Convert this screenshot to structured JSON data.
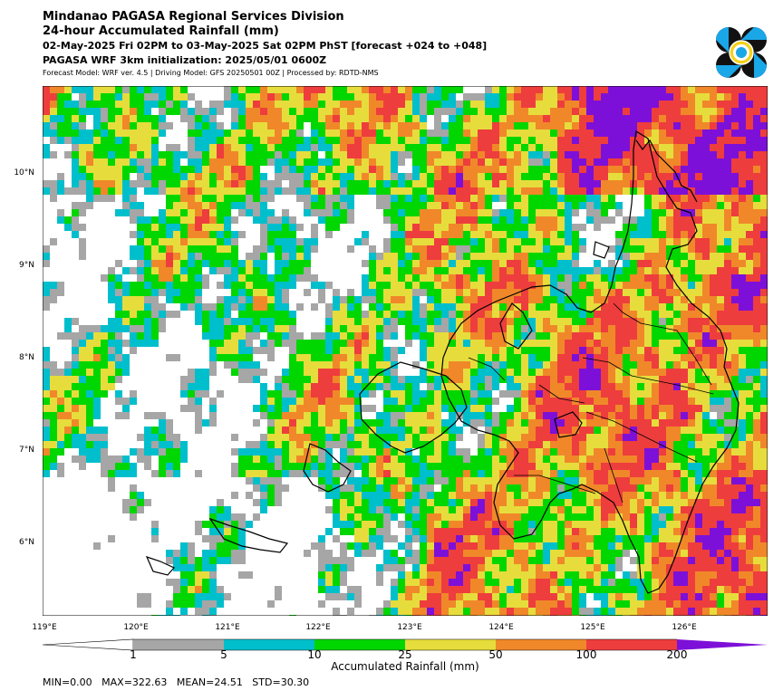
{
  "header": {
    "line1": "Mindanao PAGASA Regional Services Division",
    "line2": "24-hour Accumulated Rainfall (mm)",
    "line3": "02-May-2025 Fri 02PM to 03-May-2025 Sat 02PM PhST [forecast +024 to +048]",
    "line4": "PAGASA WRF 3km initialization: 2025/05/01 0600Z",
    "line5": "Forecast Model: WRF ver. 4.5 | Driving Model: GFS 20250501 00Z | Processed by: RDTD-NMS"
  },
  "map": {
    "lat_labels": [
      "10°N",
      "9°N",
      "8°N",
      "7°N",
      "6°N"
    ],
    "lon_labels": [
      "119°E",
      "120°E",
      "121°E",
      "122°E",
      "123°E",
      "124°E",
      "125°E",
      "126°E"
    ],
    "lat_range": [
      5.2,
      10.95
    ],
    "lon_range": [
      119.0,
      126.9
    ]
  },
  "colorbar": {
    "title": "Accumulated Rainfall (mm)",
    "ticks": [
      "1",
      "5",
      "10",
      "25",
      "50",
      "100",
      "200"
    ],
    "colors": [
      "#a6a6a6",
      "#00bfcc",
      "#00d600",
      "#e6dd3c",
      "#f0882a",
      "#ee3d3d",
      "#7d10d8"
    ]
  },
  "stats": {
    "text": "MIN=0.00   MAX=322.63   MEAN=24.51   STD=30.30"
  }
}
